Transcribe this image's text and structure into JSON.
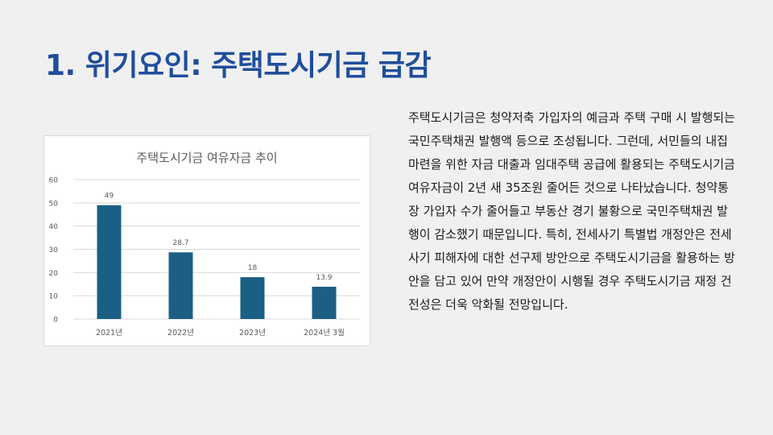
{
  "slide": {
    "title": "1. 위기요인: 주택도시기금 급감",
    "body": "주택도시기금은 청약저축 가입자의 예금과 주택 구매 시 발행되는 국민주택채권 발행액 등으로 조성됩니다. 그런데, 서민들의 내집 마련을 위한 자금 대출과 임대주택 공급에 활용되는 주택도시기금 여유자금이 2년 새 35조원 줄어든 것으로 나타났습니다. 청약통장 가입자 수가 줄어들고 부동산 경기 불황으로 국민주택채권 발행이 감소했기 때문입니다. 특히, 전세사기 특별법 개정안은 전세사기 피해자에 대한 선구제 방안으로 주택도시기금을 활용하는 방안을 담고 있어 만약 개정안이 시행될 경우 주택도시기금 재정 건전성은 더욱 악화될 전망입니다."
  },
  "colors": {
    "title": "#1f4e9c",
    "bar": "#1b5f84",
    "grid": "#d9d9d9",
    "axis_text": "#595959",
    "chart_title": "#595959"
  },
  "chart_data": {
    "type": "bar",
    "title": "주택도시기금 여유자금 추이",
    "categories": [
      "2021년",
      "2022년",
      "2023년",
      "2024년 3월"
    ],
    "values": [
      49,
      28.7,
      18,
      13.9
    ],
    "data_labels": [
      "49",
      "28.7",
      "18",
      "13.9"
    ],
    "ylim": [
      0,
      60
    ],
    "yticks": [
      0,
      10,
      20,
      30,
      40,
      50,
      60
    ],
    "grid": true,
    "legend": "none"
  }
}
